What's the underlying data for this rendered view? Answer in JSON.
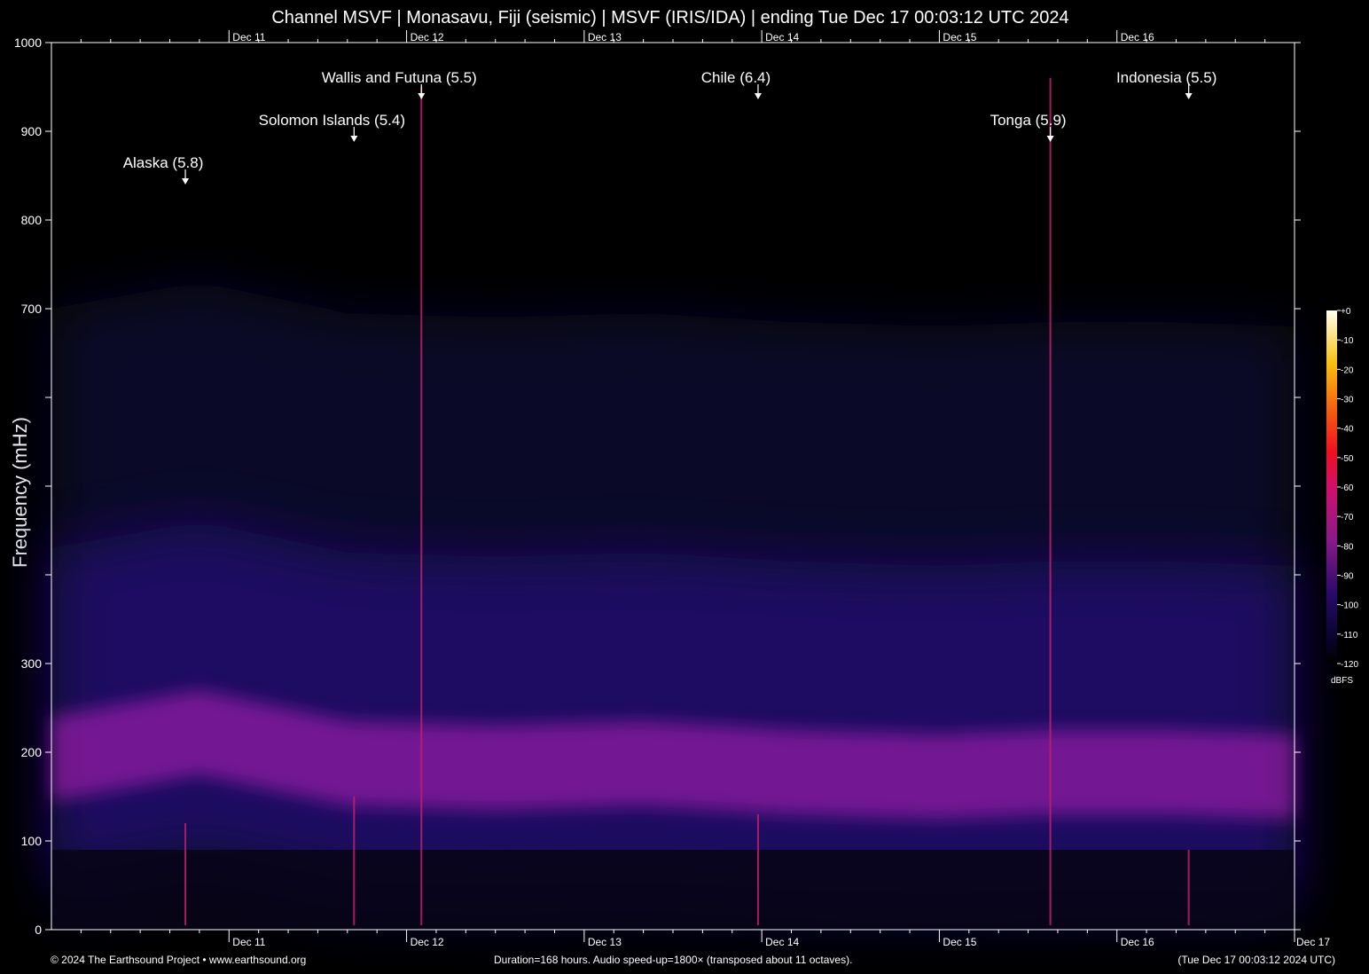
{
  "title": "Channel MSVF | Monasavu, Fiji (seismic) | MSVF (IRIS/IDA) | ending Tue Dec 17 00:03:12 UTC 2024",
  "footer": {
    "copyright": "© 2024 The Earthsound Project • www.earthsound.org",
    "duration": "Duration=168 hours. Audio speed-up=1800× (transposed about 11 octaves).",
    "end_time": "(Tue Dec 17 00:03:12 2024 UTC)"
  },
  "colors": {
    "background": "#000000",
    "noise_band": "#9a1ea8",
    "quake_line": "#c0206a",
    "annotation": "#ffffff"
  },
  "chart_data": {
    "type": "heatmap",
    "title": "Channel MSVF | Monasavu, Fiji (seismic) | MSVF (IRIS/IDA) | ending Tue Dec 17 00:03:12 UTC 2024",
    "xlabel": "",
    "ylabel": "Frequency (mHz)",
    "ylim": [
      0,
      1000
    ],
    "y_ticks": [
      0,
      100,
      200,
      300,
      400,
      500,
      600,
      700,
      800,
      900,
      1000
    ],
    "y_tick_labels": [
      "0",
      "100",
      "200",
      "300",
      "",
      "",
      "",
      "700",
      "800",
      "900",
      "1000"
    ],
    "x_range_hours": [
      0,
      168
    ],
    "x_ticks": [
      {
        "hour": 24,
        "label": "Dec 11"
      },
      {
        "hour": 48,
        "label": "Dec 12"
      },
      {
        "hour": 72,
        "label": "Dec 13"
      },
      {
        "hour": 96,
        "label": "Dec 14"
      },
      {
        "hour": 120,
        "label": "Dec 15"
      },
      {
        "hour": 144,
        "label": "Dec 16"
      }
    ],
    "x_end_label": "Dec 17",
    "colorbar": {
      "unit": "dBFS",
      "ticks": [
        "+0",
        "-10",
        "-20",
        "-30",
        "-40",
        "-50",
        "-60",
        "-70",
        "-80",
        "-90",
        "-100",
        "-110",
        "-120"
      ],
      "range_dbfs": [
        -120,
        0
      ]
    },
    "noise_band": {
      "description": "microseism band",
      "hours": [
        0,
        20,
        40,
        60,
        80,
        100,
        120,
        135,
        150,
        168
      ],
      "center_mhz": [
        180,
        210,
        175,
        170,
        175,
        165,
        160,
        165,
        165,
        160
      ]
    },
    "events": [
      {
        "label": "Alaska (5.8)",
        "hour": 18.1,
        "row": 3,
        "top_mhz": 120
      },
      {
        "label": "Solomon Islands (5.4)",
        "hour": 40.9,
        "row": 2,
        "top_mhz": 150
      },
      {
        "label": "Wallis and Futuna (5.5)",
        "hour": 50.0,
        "row": 1,
        "top_mhz": 950
      },
      {
        "label": "Chile (6.4)",
        "hour": 95.5,
        "row": 1,
        "top_mhz": 130
      },
      {
        "label": "Tonga (5.9)",
        "hour": 135.0,
        "row": 2,
        "top_mhz": 960
      },
      {
        "label": "Indonesia (5.5)",
        "hour": 153.7,
        "row": 1,
        "top_mhz": 90
      }
    ]
  }
}
